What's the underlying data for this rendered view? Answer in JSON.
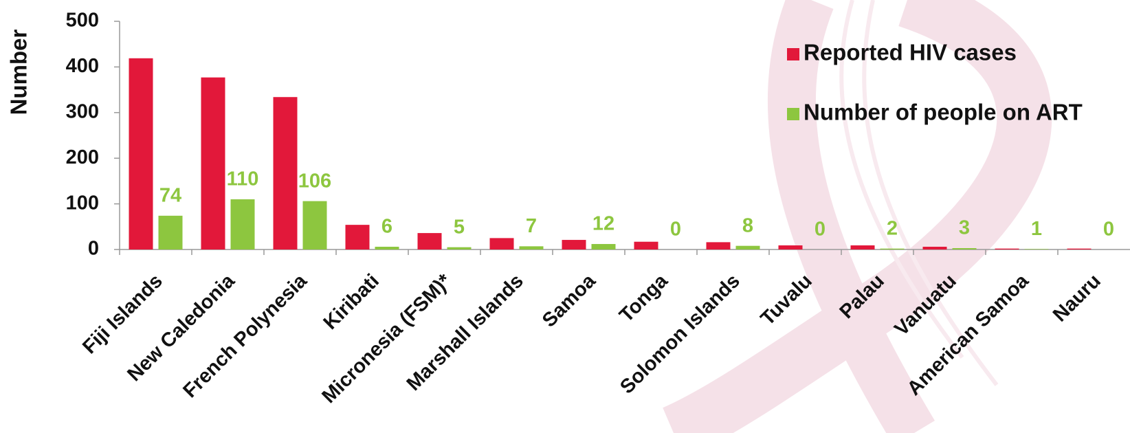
{
  "chart_data": {
    "type": "bar",
    "y_label": "Number",
    "categories": [
      "Fiji Islands",
      "New Caledonia",
      "French Polynesia",
      "Kiribati",
      "Micronesia (FSM)*",
      "Marshall Islands",
      "Samoa",
      "Tonga",
      "Solomon Islands",
      "Tuvalu",
      "Palau",
      "Vanuatu",
      "American Samoa",
      "Nauru"
    ],
    "series": [
      {
        "name": "Reported HIV cases",
        "color": "#e2183a",
        "values": [
          419,
          377,
          334,
          54,
          36,
          25,
          21,
          17,
          16,
          9,
          9,
          6,
          2,
          2
        ]
      },
      {
        "name": "Number of people on ART",
        "color": "#8dc63f",
        "values": [
          74,
          110,
          106,
          6,
          5,
          7,
          12,
          0,
          8,
          0,
          2,
          3,
          1,
          0
        ],
        "data_labels": true
      }
    ],
    "ylim": [
      0,
      500
    ],
    "yticks": [
      0,
      100,
      200,
      300,
      400,
      500
    ],
    "grid": false,
    "legend": "top-right"
  }
}
